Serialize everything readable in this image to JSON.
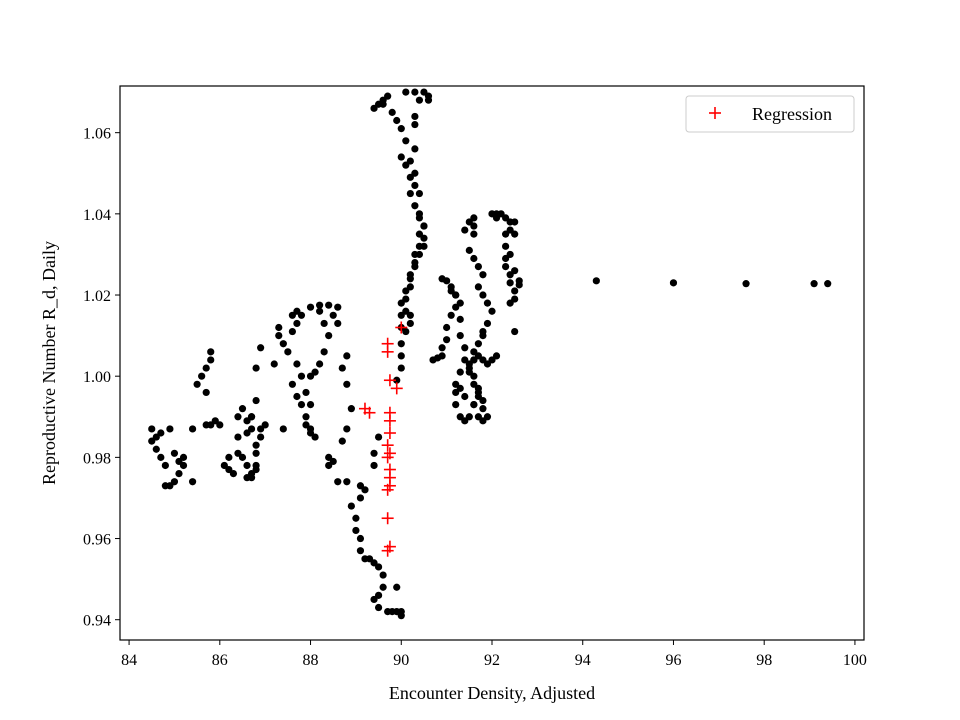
{
  "chart_data": {
    "type": "scatter",
    "title": "",
    "xlabel": "Encounter Density, Adjusted",
    "ylabel": "Reproductive Number R_d, Daily",
    "xlim": [
      83.8,
      100.2
    ],
    "ylim": [
      0.935,
      1.0715
    ],
    "xticks": [
      "84",
      "86",
      "88",
      "90",
      "92",
      "94",
      "96",
      "98",
      "100"
    ],
    "yticks": [
      "0.94",
      "0.96",
      "0.98",
      "1.00",
      "1.02",
      "1.04",
      "1.06"
    ],
    "grid": false,
    "legend": {
      "position": "top-right",
      "entries": [
        "Regression"
      ]
    },
    "series": [
      {
        "marker": "dot",
        "color": "#000000",
        "points": [
          [
            84.5,
            0.987
          ],
          [
            84.5,
            0.984
          ],
          [
            84.6,
            0.982
          ],
          [
            84.7,
            0.986
          ],
          [
            84.6,
            0.985
          ],
          [
            84.7,
            0.98
          ],
          [
            84.8,
            0.978
          ],
          [
            84.8,
            0.973
          ],
          [
            84.9,
            0.973
          ],
          [
            85.0,
            0.974
          ],
          [
            85.1,
            0.976
          ],
          [
            85.2,
            0.978
          ],
          [
            85.2,
            0.98
          ],
          [
            85.1,
            0.979
          ],
          [
            85.0,
            0.981
          ],
          [
            84.9,
            0.987
          ],
          [
            85.4,
            0.987
          ],
          [
            85.4,
            0.974
          ],
          [
            85.5,
            0.998
          ],
          [
            85.6,
            1.0
          ],
          [
            85.7,
            1.002
          ],
          [
            85.8,
            1.004
          ],
          [
            85.8,
            1.006
          ],
          [
            85.7,
            0.996
          ],
          [
            85.7,
            0.988
          ],
          [
            85.8,
            0.988
          ],
          [
            85.9,
            0.989
          ],
          [
            86.0,
            0.988
          ],
          [
            86.1,
            0.978
          ],
          [
            86.2,
            0.977
          ],
          [
            86.2,
            0.98
          ],
          [
            86.3,
            0.976
          ],
          [
            86.4,
            0.981
          ],
          [
            86.5,
            0.98
          ],
          [
            86.4,
            0.985
          ],
          [
            86.4,
            0.99
          ],
          [
            86.5,
            0.992
          ],
          [
            86.6,
            0.989
          ],
          [
            86.6,
            0.986
          ],
          [
            86.6,
            0.978
          ],
          [
            86.6,
            0.975
          ],
          [
            86.7,
            0.976
          ],
          [
            86.8,
            0.977
          ],
          [
            86.8,
            0.981
          ],
          [
            86.8,
            0.983
          ],
          [
            86.7,
            0.987
          ],
          [
            86.7,
            0.99
          ],
          [
            86.8,
            0.994
          ],
          [
            86.7,
            0.99
          ],
          [
            86.7,
            0.975
          ],
          [
            86.8,
            0.978
          ],
          [
            86.8,
            1.002
          ],
          [
            86.9,
            1.007
          ],
          [
            86.9,
            0.985
          ],
          [
            87.0,
            0.988
          ],
          [
            86.9,
            0.987
          ],
          [
            87.4,
            0.987
          ],
          [
            87.2,
            1.003
          ],
          [
            87.3,
            1.01
          ],
          [
            87.3,
            1.012
          ],
          [
            87.4,
            1.008
          ],
          [
            87.5,
            1.006
          ],
          [
            87.6,
            1.011
          ],
          [
            87.7,
            1.013
          ],
          [
            87.6,
            1.015
          ],
          [
            87.7,
            1.016
          ],
          [
            87.8,
            1.015
          ],
          [
            88.0,
            1.017
          ],
          [
            88.2,
            1.0175
          ],
          [
            88.4,
            1.0175
          ],
          [
            88.6,
            1.017
          ],
          [
            88.5,
            1.015
          ],
          [
            88.6,
            1.013
          ],
          [
            88.8,
            1.005
          ],
          [
            88.7,
            1.002
          ],
          [
            88.8,
            0.998
          ],
          [
            88.9,
            0.992
          ],
          [
            88.8,
            0.987
          ],
          [
            88.7,
            0.984
          ],
          [
            88.5,
            0.979
          ],
          [
            88.4,
            0.98
          ],
          [
            88.4,
            0.978
          ],
          [
            88.6,
            0.974
          ],
          [
            88.8,
            0.974
          ],
          [
            87.7,
            1.003
          ],
          [
            87.8,
            1.0
          ],
          [
            87.6,
            0.998
          ],
          [
            87.7,
            0.995
          ],
          [
            87.8,
            0.993
          ],
          [
            87.9,
            0.99
          ],
          [
            88.0,
            0.986
          ],
          [
            88.1,
            0.985
          ],
          [
            88.0,
            0.987
          ],
          [
            87.9,
            0.988
          ],
          [
            88.0,
            0.993
          ],
          [
            87.9,
            0.996
          ],
          [
            88.0,
            1.0
          ],
          [
            88.1,
            1.001
          ],
          [
            88.2,
            1.003
          ],
          [
            88.3,
            1.006
          ],
          [
            88.4,
            1.01
          ],
          [
            88.3,
            1.013
          ],
          [
            88.2,
            1.016
          ],
          [
            88.9,
            0.968
          ],
          [
            89.0,
            0.965
          ],
          [
            89.1,
            0.973
          ],
          [
            89.2,
            0.972
          ],
          [
            89.1,
            0.97
          ],
          [
            89.0,
            0.962
          ],
          [
            89.1,
            0.96
          ],
          [
            89.1,
            0.957
          ],
          [
            89.2,
            0.955
          ],
          [
            89.3,
            0.955
          ],
          [
            89.4,
            0.954
          ],
          [
            89.5,
            0.953
          ],
          [
            89.6,
            0.951
          ],
          [
            89.6,
            0.948
          ],
          [
            89.5,
            0.946
          ],
          [
            89.4,
            0.945
          ],
          [
            89.5,
            0.943
          ],
          [
            89.7,
            0.942
          ],
          [
            89.8,
            0.942
          ],
          [
            89.9,
            0.942
          ],
          [
            90.0,
            0.942
          ],
          [
            90.0,
            0.941
          ],
          [
            89.9,
            0.948
          ],
          [
            89.4,
            0.978
          ],
          [
            89.4,
            0.981
          ],
          [
            89.5,
            0.985
          ],
          [
            89.4,
            1.066
          ],
          [
            89.5,
            1.067
          ],
          [
            89.6,
            1.068
          ],
          [
            89.7,
            1.069
          ],
          [
            89.6,
            1.067
          ],
          [
            89.8,
            1.065
          ],
          [
            89.9,
            1.063
          ],
          [
            90.0,
            1.061
          ],
          [
            90.1,
            1.058
          ],
          [
            90.0,
            1.054
          ],
          [
            90.1,
            1.052
          ],
          [
            90.2,
            1.049
          ],
          [
            90.3,
            1.047
          ],
          [
            90.2,
            1.045
          ],
          [
            90.3,
            1.042
          ],
          [
            90.4,
            1.039
          ],
          [
            90.5,
            1.037
          ],
          [
            90.4,
            1.035
          ],
          [
            90.5,
            1.032
          ],
          [
            90.4,
            1.03
          ],
          [
            90.3,
            1.027
          ],
          [
            90.2,
            1.024
          ],
          [
            90.1,
            1.021
          ],
          [
            90.0,
            1.018
          ],
          [
            90.0,
            1.015
          ],
          [
            90.0,
            1.012
          ],
          [
            90.0,
            1.008
          ],
          [
            90.0,
            1.005
          ],
          [
            90.0,
            1.002
          ],
          [
            89.9,
            0.999
          ],
          [
            90.1,
            1.07
          ],
          [
            90.3,
            1.07
          ],
          [
            90.5,
            1.07
          ],
          [
            90.6,
            1.069
          ],
          [
            90.6,
            1.068
          ],
          [
            90.4,
            1.068
          ],
          [
            90.3,
            1.064
          ],
          [
            90.3,
            1.062
          ],
          [
            90.3,
            1.056
          ],
          [
            90.2,
            1.053
          ],
          [
            90.3,
            1.05
          ],
          [
            90.4,
            1.045
          ],
          [
            90.4,
            1.04
          ],
          [
            90.5,
            1.037
          ],
          [
            90.5,
            1.034
          ],
          [
            90.4,
            1.032
          ],
          [
            90.3,
            1.03
          ],
          [
            90.3,
            1.028
          ],
          [
            90.2,
            1.025
          ],
          [
            90.2,
            1.022
          ],
          [
            90.1,
            1.019
          ],
          [
            90.1,
            1.016
          ],
          [
            90.2,
            1.015
          ],
          [
            90.2,
            1.013
          ],
          [
            90.1,
            1.011
          ],
          [
            90.7,
            1.004
          ],
          [
            90.8,
            1.0045
          ],
          [
            90.9,
            1.005
          ],
          [
            90.9,
            1.007
          ],
          [
            91.0,
            1.009
          ],
          [
            91.0,
            1.012
          ],
          [
            91.1,
            1.015
          ],
          [
            91.2,
            1.017
          ],
          [
            91.2,
            1.02
          ],
          [
            91.1,
            1.022
          ],
          [
            90.9,
            1.024
          ],
          [
            91.0,
            1.0235
          ],
          [
            91.1,
            1.021
          ],
          [
            91.2,
            1.02
          ],
          [
            91.3,
            1.018
          ],
          [
            91.3,
            1.014
          ],
          [
            91.3,
            1.01
          ],
          [
            91.4,
            1.007
          ],
          [
            91.4,
            1.004
          ],
          [
            91.3,
            1.001
          ],
          [
            91.2,
            0.998
          ],
          [
            91.2,
            0.996
          ],
          [
            91.2,
            0.993
          ],
          [
            91.3,
            0.99
          ],
          [
            91.4,
            0.989
          ],
          [
            91.5,
            0.99
          ],
          [
            91.6,
            0.993
          ],
          [
            91.7,
            0.995
          ],
          [
            91.7,
            0.997
          ],
          [
            91.6,
            1.0
          ],
          [
            91.5,
            1.002
          ],
          [
            91.6,
            1.004
          ],
          [
            91.7,
            1.005
          ],
          [
            91.8,
            1.004
          ],
          [
            91.9,
            1.003
          ],
          [
            92.0,
            1.004
          ],
          [
            92.1,
            1.005
          ],
          [
            91.4,
            1.036
          ],
          [
            91.5,
            1.038
          ],
          [
            91.6,
            1.039
          ],
          [
            91.6,
            1.037
          ],
          [
            91.6,
            1.035
          ],
          [
            91.5,
            1.031
          ],
          [
            91.6,
            1.029
          ],
          [
            91.7,
            1.027
          ],
          [
            91.8,
            1.025
          ],
          [
            91.7,
            1.022
          ],
          [
            91.8,
            1.02
          ],
          [
            91.9,
            1.018
          ],
          [
            92.0,
            1.016
          ],
          [
            91.9,
            1.013
          ],
          [
            91.8,
            1.011
          ],
          [
            91.8,
            1.01
          ],
          [
            91.7,
            1.008
          ],
          [
            91.6,
            1.006
          ],
          [
            91.6,
            1.004
          ],
          [
            91.5,
            1.003
          ],
          [
            91.5,
            1.001
          ],
          [
            91.6,
            0.998
          ],
          [
            91.7,
            0.996
          ],
          [
            91.8,
            0.994
          ],
          [
            91.8,
            0.992
          ],
          [
            91.9,
            0.99
          ],
          [
            91.8,
            0.989
          ],
          [
            91.7,
            0.99
          ],
          [
            91.6,
            0.993
          ],
          [
            91.4,
            0.995
          ],
          [
            91.3,
            0.997
          ],
          [
            92.0,
            1.04
          ],
          [
            92.1,
            1.04
          ],
          [
            92.2,
            1.04
          ],
          [
            92.1,
            1.039
          ],
          [
            92.3,
            1.039
          ],
          [
            92.4,
            1.038
          ],
          [
            92.4,
            1.036
          ],
          [
            92.3,
            1.035
          ],
          [
            92.3,
            1.032
          ],
          [
            92.3,
            1.029
          ],
          [
            92.3,
            1.027
          ],
          [
            92.4,
            1.025
          ],
          [
            92.4,
            1.023
          ],
          [
            92.5,
            1.021
          ],
          [
            92.5,
            1.019
          ],
          [
            92.4,
            1.018
          ],
          [
            92.5,
            1.011
          ],
          [
            92.6,
            1.0225
          ],
          [
            92.6,
            1.0235
          ],
          [
            92.5,
            1.026
          ],
          [
            92.4,
            1.03
          ],
          [
            92.5,
            1.035
          ],
          [
            92.5,
            1.038
          ],
          [
            94.3,
            1.0235
          ],
          [
            96.0,
            1.023
          ],
          [
            97.6,
            1.0228
          ],
          [
            99.1,
            1.0228
          ],
          [
            99.4,
            1.0228
          ]
        ]
      },
      {
        "name": "Regression",
        "marker": "plus",
        "color": "#ff0000",
        "points": [
          [
            89.2,
            0.992
          ],
          [
            89.3,
            0.991
          ],
          [
            89.7,
            1.008
          ],
          [
            89.7,
            1.006
          ],
          [
            89.75,
            0.999
          ],
          [
            89.9,
            0.997
          ],
          [
            90.0,
            1.012
          ],
          [
            89.75,
            0.991
          ],
          [
            89.75,
            0.989
          ],
          [
            89.75,
            0.986
          ],
          [
            89.7,
            0.983
          ],
          [
            89.75,
            0.981
          ],
          [
            89.7,
            0.98
          ],
          [
            89.75,
            0.977
          ],
          [
            89.75,
            0.975
          ],
          [
            89.75,
            0.973
          ],
          [
            89.7,
            0.972
          ],
          [
            89.7,
            0.965
          ],
          [
            89.75,
            0.958
          ],
          [
            89.7,
            0.957
          ]
        ]
      }
    ]
  }
}
